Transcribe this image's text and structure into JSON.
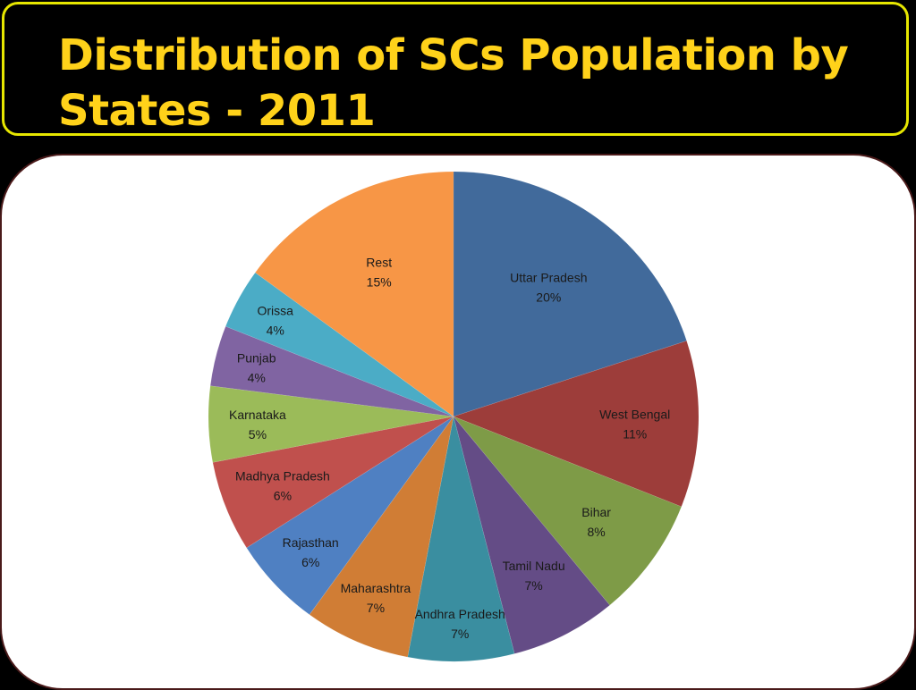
{
  "slide": {
    "title": "Distribution of SCs Population by States - 2011"
  },
  "chart_data": {
    "type": "pie",
    "title": "",
    "slices": [
      {
        "label": "Uttar Pradesh",
        "value": 20,
        "display": "20%",
        "color": "#416a9b"
      },
      {
        "label": "West Bengal",
        "value": 11,
        "display": "11%",
        "color": "#9d3d3a"
      },
      {
        "label": "Bihar",
        "value": 8,
        "display": "8%",
        "color": "#7e9b47"
      },
      {
        "label": "Tamil Nadu",
        "value": 7,
        "display": "7%",
        "color": "#644c86"
      },
      {
        "label": "Andhra Pradesh",
        "value": 7,
        "display": "7%",
        "color": "#3a8ea0"
      },
      {
        "label": "Maharashtra",
        "value": 7,
        "display": "7%",
        "color": "#d07d35"
      },
      {
        "label": "Rajasthan",
        "value": 6,
        "display": "6%",
        "color": "#4f80c2"
      },
      {
        "label": "Madhya Pradesh",
        "value": 6,
        "display": "6%",
        "color": "#c0504d"
      },
      {
        "label": "Karnataka",
        "value": 5,
        "display": "5%",
        "color": "#9bbb59"
      },
      {
        "label": "Punjab",
        "value": 4,
        "display": "4%",
        "color": "#8064a2"
      },
      {
        "label": "Orissa",
        "value": 4,
        "display": "4%",
        "color": "#4bacc6"
      },
      {
        "label": "Rest",
        "value": 15,
        "display": "15%",
        "color": "#f79646"
      }
    ],
    "start_angle": "12 o'clock",
    "direction": "clockwise",
    "legend": "none",
    "labels": "inside slices (category and percentage)"
  }
}
